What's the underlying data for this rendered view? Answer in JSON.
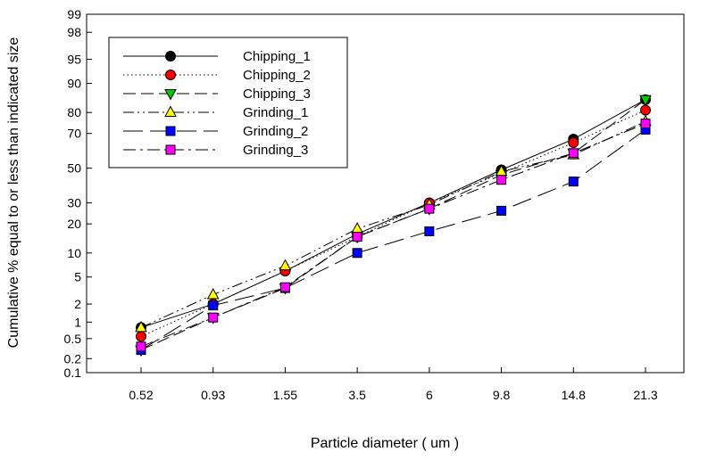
{
  "chart_data": {
    "type": "line",
    "title": "",
    "xlabel": "Particle diameter ( um )",
    "ylabel": "Cumulative % equal to or less than indicated size",
    "categories": [
      "0.52",
      "0.93",
      "1.55",
      "3.5",
      "6",
      "9.8",
      "14.8",
      "21.3"
    ],
    "y_scale": "probability",
    "y_ticks": [
      0.1,
      0.2,
      0.5,
      1,
      2,
      5,
      10,
      20,
      30,
      50,
      70,
      80,
      90,
      95,
      98,
      99
    ],
    "ylim": [
      0.1,
      99
    ],
    "grid": false,
    "legend_position": "top-left",
    "series": [
      {
        "name": "Chipping_1",
        "marker": "circle",
        "color": "#000000",
        "dash": "solid",
        "values": [
          0.8,
          2.0,
          6.0,
          16.0,
          30.0,
          49.0,
          67.0,
          85.0
        ]
      },
      {
        "name": "Chipping_2",
        "marker": "circle",
        "color": "#ff0000",
        "dash": "dotted",
        "values": [
          0.55,
          2.0,
          6.0,
          15.0,
          30.0,
          47.0,
          65.0,
          81.0
        ]
      },
      {
        "name": "Chipping_3",
        "marker": "triangle-down",
        "color": "#00cc00",
        "dash": "dash",
        "values": [
          0.3,
          1.2,
          3.5,
          15.0,
          27.0,
          46.0,
          59.0,
          85.0
        ]
      },
      {
        "name": "Grinding_1",
        "marker": "triangle-up",
        "color": "#ffff00",
        "dash": "dash-dot-dot",
        "values": [
          0.8,
          2.8,
          7.0,
          18.0,
          29.0,
          48.0,
          58.0,
          76.0
        ]
      },
      {
        "name": "Grinding_2",
        "marker": "square",
        "color": "#0000ff",
        "dash": "long-dash",
        "values": [
          0.3,
          1.9,
          3.5,
          10.0,
          17.0,
          26.0,
          42.0,
          72.0
        ]
      },
      {
        "name": "Grinding_3",
        "marker": "square",
        "color": "#ff00ff",
        "dash": "dash-dot",
        "values": [
          0.35,
          1.2,
          3.6,
          15.0,
          27.0,
          43.0,
          59.0,
          75.0
        ]
      }
    ]
  }
}
